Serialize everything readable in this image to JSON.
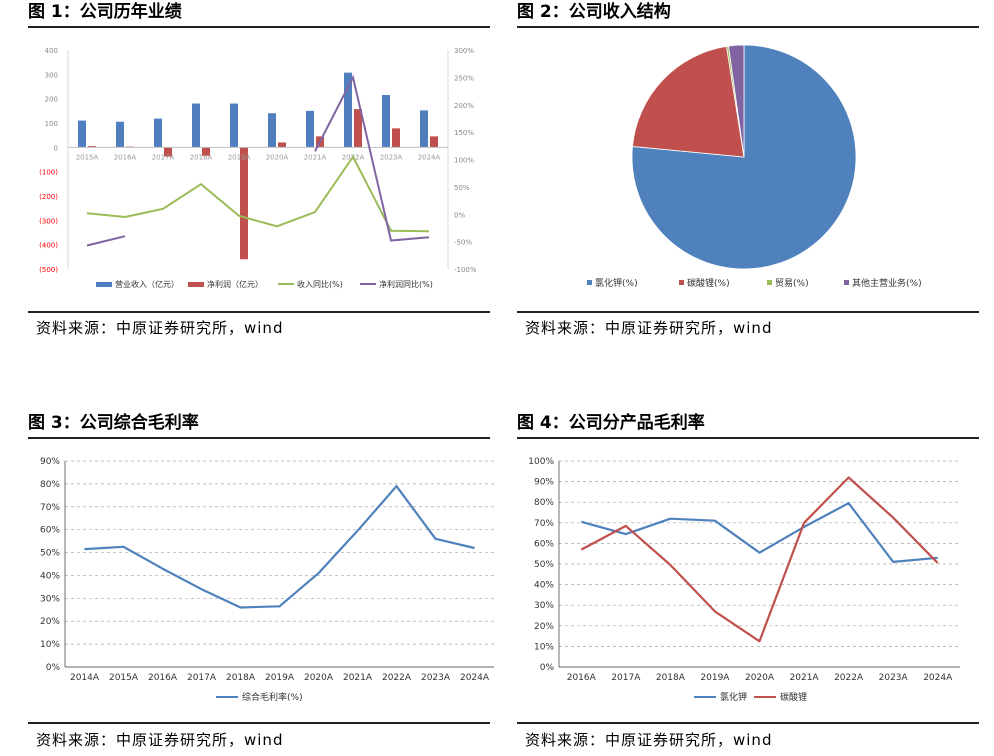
{
  "figures": [
    {
      "title": "图 1：公司历年业绩",
      "source": "资料来源：中原证券研究所，wind"
    },
    {
      "title": "图 2：公司收入结构",
      "source": "资料来源：中原证券研究所，wind"
    },
    {
      "title": "图 3：公司综合毛利率",
      "source": "资料来源：中原证券研究所，wind"
    },
    {
      "title": "图 4：公司分产品毛利率",
      "source": "资料来源：中原证券研究所，wind"
    }
  ],
  "chart_data": [
    {
      "type": "bar",
      "categories": [
        "2015A",
        "2016A",
        "2017A",
        "2018A",
        "2019A",
        "2020A",
        "2021A",
        "2022A",
        "2023A",
        "2024A"
      ],
      "ylim": [
        -500,
        400
      ],
      "y_ticks": [
        "400",
        "300",
        "200",
        "100",
        "0",
        "(100)",
        "(200)",
        "(300)",
        "(400)",
        "(500)"
      ],
      "y2lim": [
        -100,
        300
      ],
      "y2_ticks": [
        "300%",
        "250%",
        "200%",
        "150%",
        "100%",
        "50%",
        "0%",
        "-50%",
        "-100%"
      ],
      "grid": false,
      "legend_position": "bottom",
      "series": [
        {
          "name": "营业收入（亿元）",
          "type": "bar",
          "axis": "left",
          "color": "#4F7FBF",
          "values": [
            110,
            105,
            118,
            180,
            180,
            140,
            150,
            307,
            215,
            152
          ]
        },
        {
          "name": "净利润（亿元）",
          "type": "bar",
          "axis": "left",
          "color": "#C0504D",
          "values": [
            5,
            3,
            -38,
            -35,
            -460,
            20,
            45,
            157,
            78,
            45
          ]
        },
        {
          "name": "收入同比(%)",
          "type": "line",
          "axis": "right",
          "color": "#9BBB59",
          "values": [
            2,
            -5,
            10,
            55,
            -3,
            -22,
            4,
            105,
            -30,
            -31
          ]
        },
        {
          "name": "净利润同比(%)",
          "type": "line",
          "axis": "right",
          "color": "#8064A2",
          "values": [
            -57,
            -40,
            null,
            null,
            null,
            null,
            115,
            250,
            -48,
            -42
          ]
        }
      ]
    },
    {
      "type": "pie",
      "legend_position": "bottom",
      "series": [
        {
          "name": "氯化钾(%)",
          "value": 76.5,
          "color": "#4F81BD"
        },
        {
          "name": "碳酸锂(%)",
          "value": 21.0,
          "color": "#C0504D"
        },
        {
          "name": "贸易(%)",
          "value": 0.3,
          "color": "#9BBB59"
        },
        {
          "name": "其他主营业务(%)",
          "value": 2.2,
          "color": "#8064A2"
        }
      ]
    },
    {
      "type": "line",
      "categories": [
        "2014A",
        "2015A",
        "2016A",
        "2017A",
        "2018A",
        "2019A",
        "2020A",
        "2021A",
        "2022A",
        "2023A",
        "2024A"
      ],
      "ylim": [
        0,
        90
      ],
      "y_ticks": [
        "90%",
        "80%",
        "70%",
        "60%",
        "50%",
        "40%",
        "30%",
        "20%",
        "10%",
        "0%"
      ],
      "grid": true,
      "legend_position": "bottom",
      "series": [
        {
          "name": "综合毛利率(%)",
          "color": "#4F81BD",
          "values": [
            51.5,
            52.5,
            43,
            34,
            26,
            26.5,
            41,
            59.5,
            79,
            56,
            52
          ]
        }
      ]
    },
    {
      "type": "line",
      "categories": [
        "2016A",
        "2017A",
        "2018A",
        "2019A",
        "2020A",
        "2021A",
        "2022A",
        "2023A",
        "2024A"
      ],
      "ylim": [
        0,
        100
      ],
      "y_ticks": [
        "100%",
        "90%",
        "80%",
        "70%",
        "60%",
        "50%",
        "40%",
        "30%",
        "20%",
        "10%",
        "0%"
      ],
      "grid": true,
      "legend_position": "bottom",
      "series": [
        {
          "name": "氯化钾",
          "color": "#4F81BD",
          "values": [
            70.5,
            64.5,
            72,
            71,
            55.5,
            68,
            79.5,
            51,
            53
          ]
        },
        {
          "name": "碳酸锂",
          "color": "#C0504D",
          "values": [
            57,
            68.5,
            49.5,
            27,
            12.5,
            70,
            92,
            72.5,
            50.5
          ]
        }
      ]
    }
  ]
}
